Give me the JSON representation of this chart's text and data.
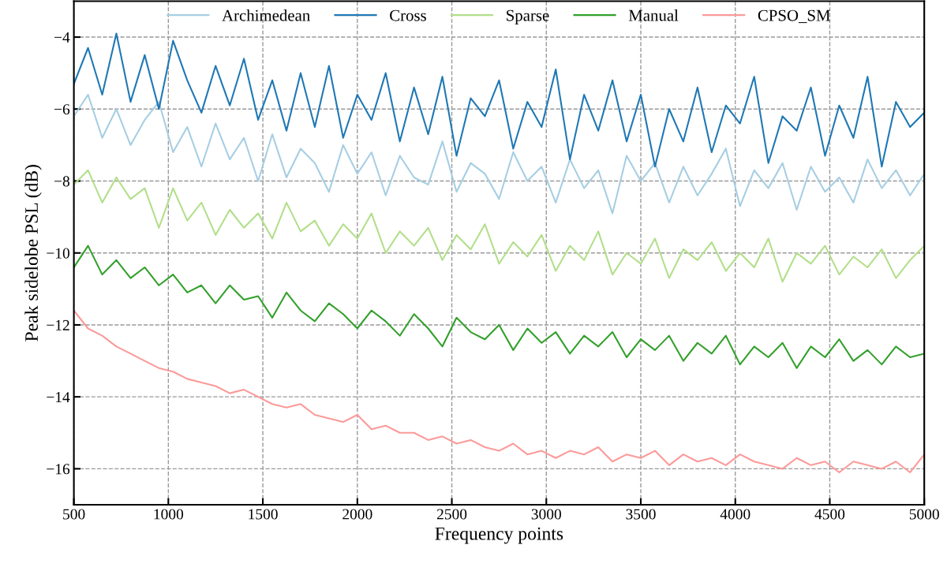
{
  "chart_data": {
    "type": "line",
    "xlabel": "Frequency points",
    "ylabel": "Peak sidelobe PSL (dB)",
    "x": [
      500,
      575,
      650,
      725,
      800,
      875,
      950,
      1025,
      1100,
      1175,
      1250,
      1325,
      1400,
      1475,
      1550,
      1625,
      1700,
      1775,
      1850,
      1925,
      2000,
      2075,
      2150,
      2225,
      2300,
      2375,
      2450,
      2525,
      2600,
      2675,
      2750,
      2825,
      2900,
      2975,
      3050,
      3125,
      3200,
      3275,
      3350,
      3425,
      3500,
      3575,
      3650,
      3725,
      3800,
      3875,
      3950,
      4025,
      4100,
      4175,
      4250,
      4325,
      4400,
      4475,
      4550,
      4625,
      4700,
      4775,
      4850,
      4925,
      5000
    ],
    "series": [
      {
        "name": "Archimedean",
        "color": "#a6cee3",
        "values": [
          -6.2,
          -5.6,
          -6.8,
          -6.0,
          -7.0,
          -6.3,
          -5.8,
          -7.2,
          -6.5,
          -7.6,
          -6.4,
          -7.4,
          -6.8,
          -8.0,
          -6.7,
          -7.9,
          -7.1,
          -7.5,
          -8.3,
          -7.0,
          -7.8,
          -7.2,
          -8.4,
          -7.3,
          -7.9,
          -8.1,
          -6.9,
          -8.3,
          -7.5,
          -7.8,
          -8.5,
          -7.2,
          -8.0,
          -7.6,
          -8.6,
          -7.4,
          -8.2,
          -7.7,
          -8.9,
          -7.3,
          -8.0,
          -7.5,
          -8.6,
          -7.6,
          -8.4,
          -7.8,
          -7.1,
          -8.7,
          -7.7,
          -8.2,
          -7.5,
          -8.8,
          -7.6,
          -8.3,
          -7.9,
          -8.6,
          -7.4,
          -8.2,
          -7.7,
          -8.4,
          -7.8
        ]
      },
      {
        "name": "Cross",
        "color": "#1f78b4",
        "values": [
          -5.3,
          -4.3,
          -5.6,
          -3.9,
          -5.8,
          -4.5,
          -6.0,
          -4.1,
          -5.2,
          -6.1,
          -4.8,
          -5.9,
          -4.6,
          -6.3,
          -5.2,
          -6.6,
          -5.0,
          -6.5,
          -4.8,
          -6.8,
          -5.6,
          -6.3,
          -5.0,
          -6.9,
          -5.4,
          -6.7,
          -5.1,
          -7.3,
          -5.7,
          -6.2,
          -5.2,
          -7.1,
          -5.8,
          -6.5,
          -4.9,
          -7.4,
          -5.6,
          -6.6,
          -5.2,
          -6.9,
          -5.6,
          -7.6,
          -6.0,
          -6.9,
          -5.4,
          -7.2,
          -5.9,
          -6.4,
          -5.1,
          -7.5,
          -6.2,
          -6.6,
          -5.4,
          -7.3,
          -5.9,
          -6.8,
          -5.1,
          -7.6,
          -5.8,
          -6.5,
          -6.1
        ]
      },
      {
        "name": "Sparse",
        "color": "#b2df8a",
        "values": [
          -8.1,
          -7.7,
          -8.6,
          -7.9,
          -8.5,
          -8.2,
          -9.3,
          -8.2,
          -9.1,
          -8.6,
          -9.5,
          -8.8,
          -9.3,
          -8.9,
          -9.6,
          -8.6,
          -9.4,
          -9.1,
          -9.8,
          -9.2,
          -9.6,
          -8.9,
          -10.0,
          -9.4,
          -9.8,
          -9.3,
          -10.2,
          -9.5,
          -9.9,
          -9.2,
          -10.3,
          -9.7,
          -10.1,
          -9.5,
          -10.5,
          -9.8,
          -10.2,
          -9.4,
          -10.6,
          -10.0,
          -10.3,
          -9.6,
          -10.7,
          -9.9,
          -10.2,
          -9.7,
          -10.5,
          -10.0,
          -10.4,
          -9.6,
          -10.8,
          -10.0,
          -10.3,
          -9.8,
          -10.6,
          -10.1,
          -10.4,
          -9.9,
          -10.7,
          -10.2,
          -9.8
        ]
      },
      {
        "name": "Manual",
        "color": "#33a02c",
        "values": [
          -10.4,
          -9.8,
          -10.6,
          -10.2,
          -10.7,
          -10.4,
          -10.9,
          -10.6,
          -11.1,
          -10.9,
          -11.4,
          -10.9,
          -11.3,
          -11.2,
          -11.8,
          -11.1,
          -11.6,
          -11.9,
          -11.4,
          -11.7,
          -12.1,
          -11.6,
          -11.9,
          -12.3,
          -11.7,
          -12.1,
          -12.6,
          -11.8,
          -12.2,
          -12.4,
          -12.0,
          -12.7,
          -12.1,
          -12.5,
          -12.2,
          -12.8,
          -12.3,
          -12.6,
          -12.2,
          -12.9,
          -12.4,
          -12.7,
          -12.3,
          -13.0,
          -12.5,
          -12.8,
          -12.3,
          -13.1,
          -12.6,
          -12.9,
          -12.5,
          -13.2,
          -12.6,
          -12.9,
          -12.4,
          -13.0,
          -12.7,
          -13.1,
          -12.6,
          -12.9,
          -12.8
        ]
      },
      {
        "name": "CPSO_SM",
        "color": "#fb9a99",
        "values": [
          -11.6,
          -12.1,
          -12.3,
          -12.6,
          -12.8,
          -13.0,
          -13.2,
          -13.3,
          -13.5,
          -13.6,
          -13.7,
          -13.9,
          -13.8,
          -14.0,
          -14.2,
          -14.3,
          -14.2,
          -14.5,
          -14.6,
          -14.7,
          -14.5,
          -14.9,
          -14.8,
          -15.0,
          -15.0,
          -15.2,
          -15.1,
          -15.3,
          -15.2,
          -15.4,
          -15.5,
          -15.3,
          -15.6,
          -15.5,
          -15.7,
          -15.5,
          -15.6,
          -15.4,
          -15.8,
          -15.6,
          -15.7,
          -15.5,
          -15.9,
          -15.6,
          -15.8,
          -15.7,
          -15.9,
          -15.6,
          -15.8,
          -15.9,
          -16.0,
          -15.7,
          -15.9,
          -15.8,
          -16.1,
          -15.8,
          -15.9,
          -16.0,
          -15.8,
          -16.1,
          -15.6
        ]
      }
    ],
    "xlim": [
      500,
      5000
    ],
    "xticks": [
      500,
      1000,
      1500,
      2000,
      2500,
      3000,
      3500,
      4000,
      4500,
      5000
    ],
    "ylim": [
      -17,
      -3
    ],
    "yticks": [
      {
        "value": -16,
        "label": "−16"
      },
      {
        "value": -14,
        "label": "−14"
      },
      {
        "value": -12,
        "label": "−12"
      },
      {
        "value": -10,
        "label": "−10"
      },
      {
        "value": -8,
        "label": "−8"
      },
      {
        "value": -6,
        "label": "−6"
      },
      {
        "value": -4,
        "label": "−4"
      }
    ],
    "grid": true,
    "legend": "top",
    "marker": "none",
    "line_style": "solid"
  }
}
